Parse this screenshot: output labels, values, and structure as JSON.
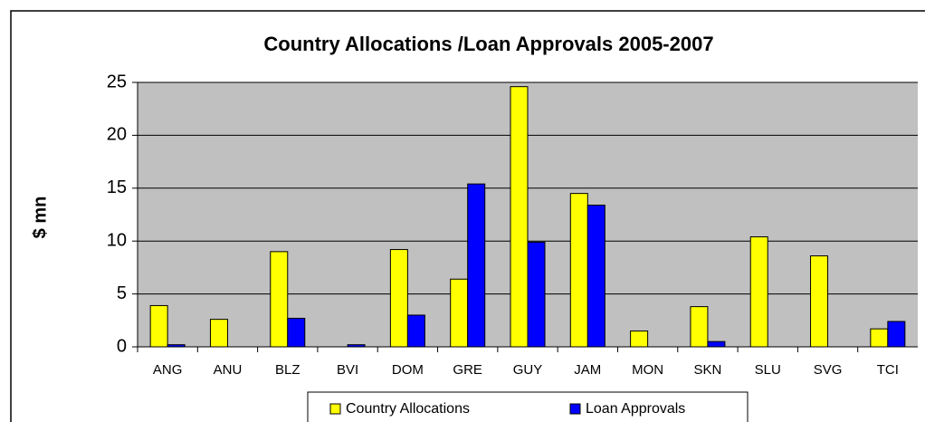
{
  "chart_data": {
    "type": "bar",
    "title": "Country Allocations /Loan Approvals 2005-2007",
    "y_label": "$ mn",
    "categories": [
      "ANG",
      "ANU",
      "BLZ",
      "BVI",
      "DOM",
      "GRE",
      "GUY",
      "JAM",
      "MON",
      "SKN",
      "SLU",
      "SVG",
      "TCI"
    ],
    "series": [
      {
        "name": "Country Allocations",
        "color": "#ffff00",
        "values": [
          3.9,
          2.6,
          9.0,
          0,
          9.2,
          6.4,
          24.6,
          14.5,
          1.5,
          3.8,
          10.4,
          8.6,
          1.7
        ]
      },
      {
        "name": "Loan Approvals",
        "color": "#0000ff",
        "values": [
          0.2,
          0,
          2.7,
          0.2,
          3.0,
          15.4,
          9.9,
          13.4,
          0,
          0.5,
          0,
          0,
          2.4
        ]
      }
    ],
    "ylim": [
      0,
      25
    ],
    "yticks": [
      0,
      5,
      10,
      15,
      20,
      25
    ],
    "grid": true,
    "legend": "bottom"
  }
}
